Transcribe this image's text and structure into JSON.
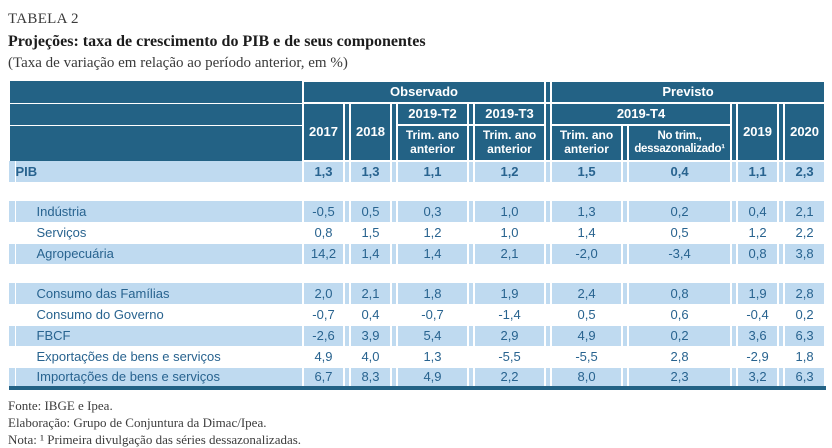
{
  "title": {
    "label": "TABELA 2",
    "heading": "Projeções: taxa de crescimento do PIB e de seus componentes",
    "subheading": "(Taxa de variação em relação ao período anterior, em %)"
  },
  "table": {
    "sections": {
      "observado": "Observado",
      "previsto": "Previsto"
    },
    "col_groups": {
      "t2": "2019-T2",
      "t3": "2019-T3",
      "t4": "2019-T4"
    },
    "columns": {
      "c2017": "2017",
      "c2018": "2018",
      "trim_ano_anterior": "Trim. ano anterior",
      "no_trim_dessaz": "No trim., dessazonalizado¹",
      "c2019": "2019",
      "c2020": "2020"
    },
    "groups": [
      {
        "rows": [
          {
            "label": "PIB",
            "indent": false,
            "shade": "blue",
            "emphasis": true,
            "values": [
              "1,3",
              "1,3",
              "1,1",
              "1,2",
              "1,5",
              "0,4",
              "1,1",
              "2,3"
            ]
          }
        ]
      },
      {
        "rows": [
          {
            "label": "Indústria",
            "indent": true,
            "shade": "blue",
            "emphasis": false,
            "values": [
              "-0,5",
              "0,5",
              "0,3",
              "1,0",
              "1,3",
              "0,2",
              "0,4",
              "2,1"
            ]
          },
          {
            "label": "Serviços",
            "indent": true,
            "shade": "white",
            "emphasis": false,
            "values": [
              "0,8",
              "1,5",
              "1,2",
              "1,0",
              "1,4",
              "0,5",
              "1,2",
              "2,2"
            ]
          },
          {
            "label": "Agropecuária",
            "indent": true,
            "shade": "blue",
            "emphasis": false,
            "values": [
              "14,2",
              "1,4",
              "1,4",
              "2,1",
              "-2,0",
              "-3,4",
              "0,8",
              "3,8"
            ]
          }
        ]
      },
      {
        "rows": [
          {
            "label": "Consumo das Famílias",
            "indent": true,
            "shade": "blue",
            "emphasis": false,
            "values": [
              "2,0",
              "2,1",
              "1,8",
              "1,9",
              "2,4",
              "0,8",
              "1,9",
              "2,8"
            ]
          },
          {
            "label": "Consumo do Governo",
            "indent": true,
            "shade": "white",
            "emphasis": false,
            "values": [
              "-0,7",
              "0,4",
              "-0,7",
              "-1,4",
              "0,5",
              "0,6",
              "-0,4",
              "0,2"
            ]
          },
          {
            "label": "FBCF",
            "indent": true,
            "shade": "blue",
            "emphasis": false,
            "values": [
              "-2,6",
              "3,9",
              "5,4",
              "2,9",
              "4,9",
              "0,2",
              "3,6",
              "6,3"
            ]
          },
          {
            "label": "Exportações de bens e serviços",
            "indent": true,
            "shade": "white",
            "emphasis": false,
            "values": [
              "4,9",
              "4,0",
              "1,3",
              "-5,5",
              "-5,5",
              "2,8",
              "-2,9",
              "1,8"
            ]
          },
          {
            "label": "Importações de bens e serviços",
            "indent": true,
            "shade": "blue",
            "emphasis": false,
            "values": [
              "6,7",
              "8,3",
              "4,9",
              "2,2",
              "8,0",
              "2,3",
              "3,2",
              "6,3"
            ]
          }
        ]
      }
    ]
  },
  "footer": {
    "fonte": "Fonte: IBGE e Ipea.",
    "elaboracao": "Elaboração: Grupo de Conjuntura da Dimac/Ipea.",
    "nota": "Nota: ¹ Primeira divulgação das séries dessazonalizadas."
  },
  "colors": {
    "header_bg": "#236285",
    "row_blue": "#bfdaf0",
    "text_blue": "#28638f"
  }
}
